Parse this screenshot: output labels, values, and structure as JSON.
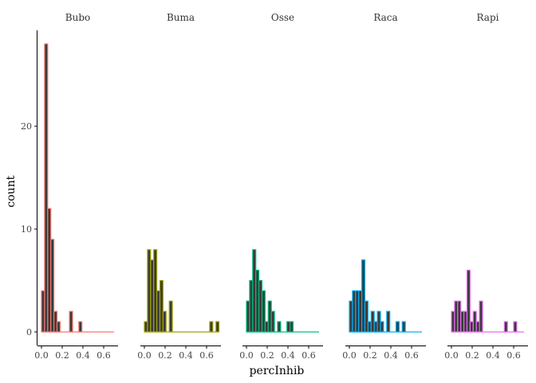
{
  "chart_data": {
    "type": "bar",
    "subtype": "faceted-histogram",
    "xlabel": "percInhib",
    "ylabel": "count",
    "y_ticks": [
      0,
      10,
      20
    ],
    "ylim": [
      0,
      28
    ],
    "x_ticks": [
      0.0,
      0.2,
      0.4,
      0.6
    ],
    "x_tick_labels": [
      "0.0",
      "0.2",
      "0.4",
      "0.6"
    ],
    "xlim": [
      0,
      0.7
    ],
    "bin_width": 0.03,
    "fill": "#3a3a3a",
    "facets": [
      {
        "name": "Bubo",
        "color": "#F8766D",
        "bins": [
          0,
          0.03,
          0.06,
          0.09,
          0.12,
          0.15,
          0.18,
          0.21,
          0.24,
          0.27,
          0.3,
          0.33,
          0.36,
          0.39,
          0.42,
          0.45,
          0.48,
          0.51,
          0.54,
          0.57,
          0.6,
          0.63,
          0.66,
          0.69
        ],
        "counts": [
          4,
          28,
          12,
          9,
          2,
          1,
          0,
          0,
          0,
          2,
          0,
          0,
          1,
          0,
          0,
          0,
          0,
          0,
          0,
          0,
          0,
          0,
          0,
          0
        ]
      },
      {
        "name": "Buma",
        "color": "#A3A500",
        "bins": [
          0,
          0.03,
          0.06,
          0.09,
          0.12,
          0.15,
          0.18,
          0.21,
          0.24,
          0.27,
          0.3,
          0.33,
          0.36,
          0.39,
          0.42,
          0.45,
          0.48,
          0.51,
          0.54,
          0.57,
          0.6,
          0.63,
          0.66,
          0.69
        ],
        "counts": [
          1,
          8,
          7,
          8,
          4,
          5,
          2,
          0,
          3,
          0,
          0,
          0,
          0,
          0,
          0,
          0,
          0,
          0,
          0,
          0,
          0,
          1,
          0,
          1
        ]
      },
      {
        "name": "Osse",
        "color": "#00BF7D",
        "bins": [
          0,
          0.03,
          0.06,
          0.09,
          0.12,
          0.15,
          0.18,
          0.21,
          0.24,
          0.27,
          0.3,
          0.33,
          0.36,
          0.39,
          0.42,
          0.45,
          0.48,
          0.51,
          0.54,
          0.57,
          0.6,
          0.63,
          0.66,
          0.69
        ],
        "counts": [
          3,
          5,
          8,
          6,
          5,
          4,
          1,
          3,
          2,
          0,
          1,
          0,
          0,
          1,
          1,
          0,
          0,
          0,
          0,
          0,
          0,
          0,
          0,
          0
        ]
      },
      {
        "name": "Raca",
        "color": "#00B0F6",
        "bins": [
          0,
          0.03,
          0.06,
          0.09,
          0.12,
          0.15,
          0.18,
          0.21,
          0.24,
          0.27,
          0.3,
          0.33,
          0.36,
          0.39,
          0.42,
          0.45,
          0.48,
          0.51,
          0.54,
          0.57,
          0.6,
          0.63,
          0.66,
          0.69
        ],
        "counts": [
          3,
          4,
          4,
          4,
          7,
          3,
          1,
          2,
          1,
          2,
          1,
          0,
          2,
          0,
          0,
          1,
          0,
          1,
          0,
          0,
          0,
          0,
          0,
          0
        ]
      },
      {
        "name": "Rapi",
        "color": "#E76BF3",
        "bins": [
          0,
          0.03,
          0.06,
          0.09,
          0.12,
          0.15,
          0.18,
          0.21,
          0.24,
          0.27,
          0.3,
          0.33,
          0.36,
          0.39,
          0.42,
          0.45,
          0.48,
          0.51,
          0.54,
          0.57,
          0.6,
          0.63,
          0.66,
          0.69
        ],
        "counts": [
          2,
          3,
          3,
          2,
          2,
          6,
          1,
          2,
          1,
          3,
          0,
          0,
          0,
          0,
          0,
          0,
          0,
          1,
          0,
          0,
          1,
          0,
          0,
          0
        ]
      }
    ]
  }
}
